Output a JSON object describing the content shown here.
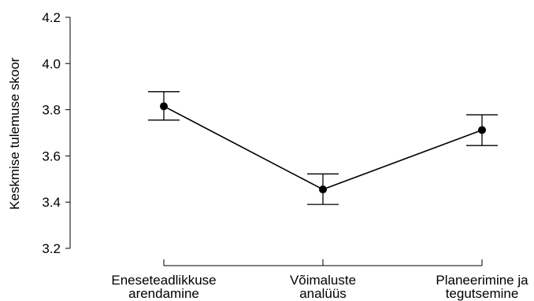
{
  "chart_data": {
    "type": "line",
    "title": "",
    "xlabel": "",
    "ylabel": "Keskmise tulemuse skoor",
    "ylim": [
      3.2,
      4.2
    ],
    "yticks": [
      "3.2",
      "3.4",
      "3.6",
      "3.8",
      "4.0",
      "4.2"
    ],
    "grid": false,
    "categories": [
      [
        "Eneseteadlikkuse",
        "arendamine"
      ],
      [
        "Võimaluste",
        "analüüs"
      ],
      [
        "Planeerimine ja",
        "tegutsemine"
      ]
    ],
    "series": [
      {
        "values": [
          3.815,
          3.455,
          3.712
        ],
        "error_low": [
          3.755,
          3.39,
          3.645
        ],
        "error_high": [
          3.878,
          3.522,
          3.778
        ]
      }
    ]
  }
}
